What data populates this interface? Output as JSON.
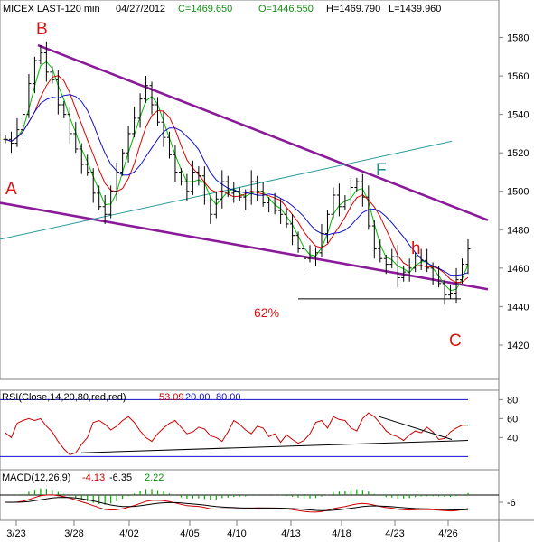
{
  "header": {
    "symbol": "MICEX LAST-120 min",
    "date": "04/27/2012",
    "close": "C=1469.650",
    "open": "O=1446.550",
    "high": "H=1469.790",
    "low": "L=1439.960"
  },
  "annotations": {
    "A": "A",
    "B": "B",
    "C": "C",
    "F": "F",
    "h": "h",
    "fib": "62%"
  },
  "rsi_legend": {
    "label": "RSI(Close,14,20,80,red,red)",
    "value": "53.09",
    "low": "20.00",
    "high": "80.00"
  },
  "macd_legend": {
    "label": "MACD(12,26,9)",
    "macd": "-4.13",
    "signal": "-6.35",
    "hist": "2.22"
  },
  "colors": {
    "price": "#000000",
    "ma_fast": "#00bb00",
    "ma_mid": "#dd0000",
    "ma_slow": "#1010cc",
    "channel": "#8a1a9a",
    "trendline": "#2a9a9a",
    "label_red": "#dd1111",
    "label_teal": "#1a8a8a",
    "legend_green": "#109010",
    "rsi_line": "#cc0000",
    "rsi_bounds": "#1010cc",
    "macd_hist": "#00aa00"
  },
  "chart_data": [
    {
      "type": "line",
      "title": "MICEX LAST-120 min",
      "x_ticks": [
        "3/23",
        "3/28",
        "4/02",
        "4/05",
        "4/10",
        "4/13",
        "4/18",
        "4/23",
        "4/26"
      ],
      "y_ticks": [
        1420,
        1440,
        1460,
        1480,
        1500,
        1520,
        1540,
        1560,
        1580
      ],
      "ylim": [
        1404,
        1592
      ],
      "series": [
        {
          "name": "Close",
          "values": [
            1527,
            1525,
            1532,
            1540,
            1556,
            1568,
            1572,
            1562,
            1558,
            1545,
            1540,
            1530,
            1522,
            1514,
            1510,
            1499,
            1492,
            1488,
            1500,
            1510,
            1520,
            1530,
            1538,
            1548,
            1555,
            1545,
            1536,
            1528,
            1519,
            1510,
            1505,
            1500,
            1510,
            1508,
            1495,
            1488,
            1496,
            1505,
            1499,
            1500,
            1497,
            1495,
            1505,
            1500,
            1494,
            1495,
            1490,
            1488,
            1483,
            1477,
            1470,
            1465,
            1466,
            1468,
            1478,
            1488,
            1498,
            1492,
            1495,
            1502,
            1505,
            1497,
            1482,
            1470,
            1465,
            1462,
            1466,
            1455,
            1458,
            1460,
            1466,
            1464,
            1460,
            1456,
            1452,
            1446,
            1447,
            1454,
            1462,
            1470
          ]
        }
      ],
      "moving_averages": [
        {
          "name": "MA fast",
          "color": "green"
        },
        {
          "name": "MA mid",
          "color": "red"
        },
        {
          "name": "MA slow",
          "color": "blue"
        }
      ],
      "trendlines": [
        {
          "name": "upper channel",
          "from": {
            "x": "3/23",
            "y": 1576
          },
          "to": {
            "x": "4/27",
            "y": 1485
          }
        },
        {
          "name": "lower channel",
          "from": {
            "x": "3/22",
            "y": 1494
          },
          "to": {
            "x": "4/27",
            "y": 1449
          }
        },
        {
          "name": "rising line",
          "from": {
            "x": "3/22",
            "y": 1475
          },
          "to": {
            "x": "4/26",
            "y": 1526
          }
        },
        {
          "name": "62% level",
          "y": 1444
        }
      ]
    },
    {
      "type": "line",
      "title": "RSI(Close,14,20,80,red,red)",
      "y_ticks": [
        40,
        60,
        80
      ],
      "ylim": [
        8,
        88
      ],
      "reference_levels": [
        20,
        80
      ],
      "series": [
        {
          "name": "RSI",
          "values": [
            45,
            40,
            55,
            58,
            60,
            58,
            60,
            52,
            46,
            36,
            28,
            22,
            24,
            33,
            40,
            56,
            58,
            54,
            48,
            52,
            58,
            62,
            56,
            47,
            40,
            36,
            44,
            50,
            55,
            58,
            51,
            44,
            46,
            51,
            49,
            42,
            40,
            36,
            46,
            58,
            54,
            48,
            44,
            52,
            50,
            41,
            44,
            35,
            43,
            38,
            34,
            37,
            44,
            56,
            58,
            50,
            62,
            59,
            58,
            50,
            47,
            60,
            66,
            62,
            55,
            47,
            43,
            41,
            37,
            43,
            47,
            45,
            51,
            46,
            38,
            39,
            46,
            50,
            53,
            53
          ]
        }
      ]
    },
    {
      "type": "line",
      "title": "MACD(12,26,9)",
      "y_ticks": [
        -6
      ],
      "series": [
        {
          "name": "MACD",
          "values": [
            -4.13
          ]
        },
        {
          "name": "Signal",
          "values": [
            -6.35
          ]
        },
        {
          "name": "Histogram",
          "values": [
            2.22
          ]
        }
      ]
    }
  ]
}
